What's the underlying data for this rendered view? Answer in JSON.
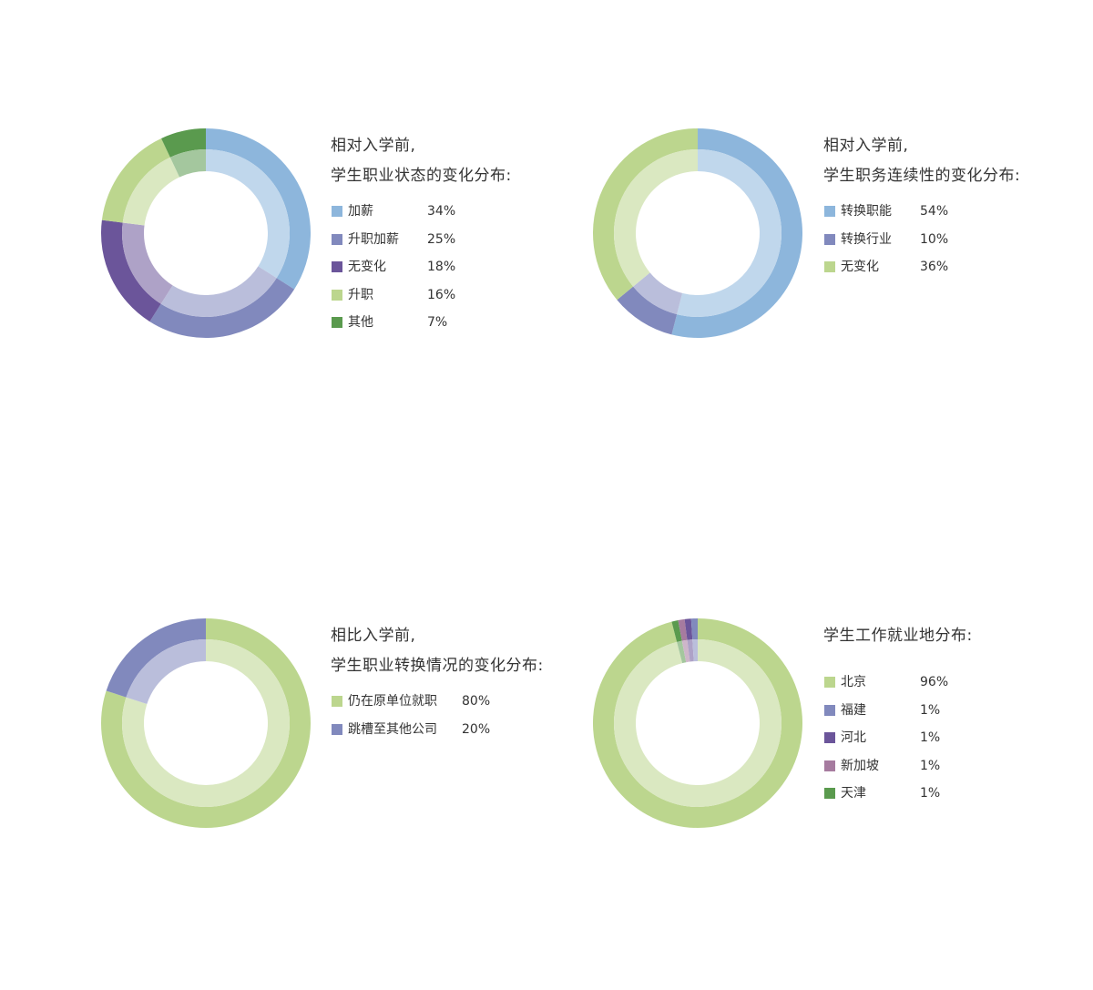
{
  "chart_data": [
    {
      "type": "pie",
      "title": [
        "相对入学前,",
        "学生职业状态的变化分布:"
      ],
      "categories": [
        "加薪",
        "升职加薪",
        "无变化",
        "升职",
        "其他"
      ],
      "values": [
        34,
        25,
        18,
        16,
        7
      ],
      "labels": [
        "34%",
        "25%",
        "18%",
        "16%",
        "7%"
      ],
      "colors": [
        "#8db6dc",
        "#8189bd",
        "#6b559a",
        "#bcd68e",
        "#5a9a4e"
      ],
      "legend": "right"
    },
    {
      "type": "pie",
      "title": [
        "相对入学前,",
        "学生职务连续性的变化分布:"
      ],
      "categories": [
        "转换职能",
        "转换行业",
        "无变化"
      ],
      "values": [
        54,
        10,
        36
      ],
      "labels": [
        "54%",
        "10%",
        "36%"
      ],
      "colors": [
        "#8db6dc",
        "#8189bd",
        "#bcd68e"
      ],
      "legend": "right"
    },
    {
      "type": "pie",
      "title": [
        "相比入学前,",
        "学生职业转换情况的变化分布:"
      ],
      "categories": [
        "仍在原单位就职",
        "跳槽至其他公司"
      ],
      "values": [
        80,
        20
      ],
      "labels": [
        "80%",
        "20%"
      ],
      "colors": [
        "#bcd68e",
        "#8189bd"
      ],
      "legend": "right"
    },
    {
      "type": "pie",
      "title": [
        "学生工作就业地分布:"
      ],
      "categories": [
        "北京",
        "福建",
        "河北",
        "新加坡",
        "天津"
      ],
      "values": [
        96,
        1,
        1,
        1,
        1
      ],
      "labels": [
        "96%",
        "1%",
        "1%",
        "1%",
        "1%"
      ],
      "colors": [
        "#bcd68e",
        "#8189bd",
        "#6b559a",
        "#a67b9f",
        "#5a9a4e"
      ],
      "legend": "right"
    }
  ]
}
